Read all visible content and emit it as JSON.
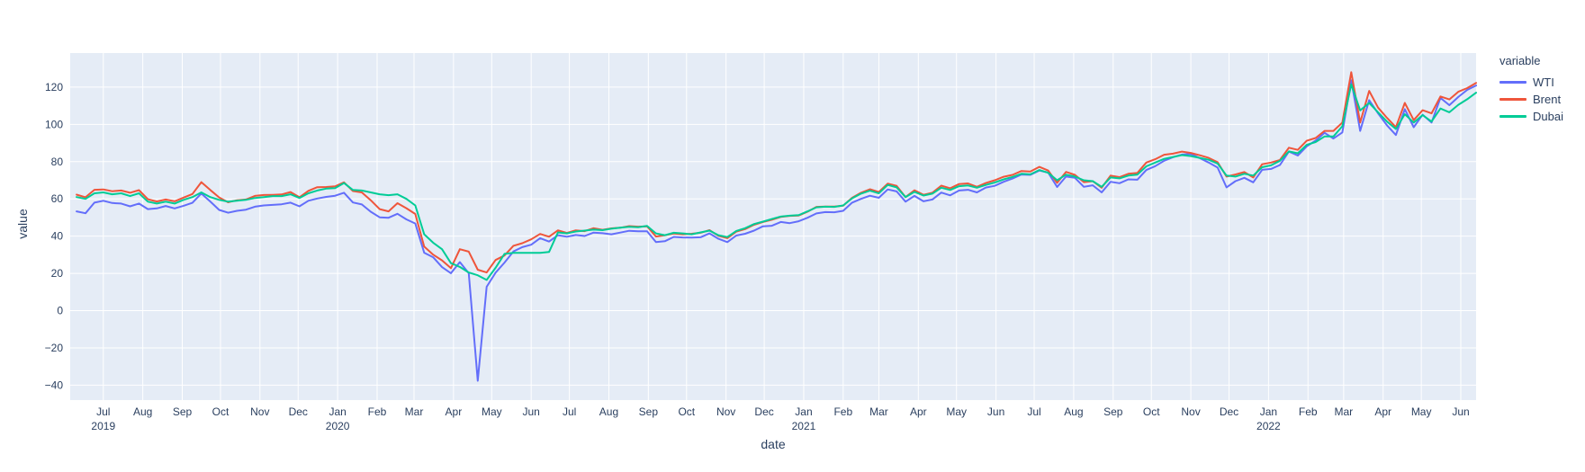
{
  "chart_data": {
    "type": "line",
    "title": "",
    "xlabel": "date",
    "ylabel": "value",
    "legend_title": "variable",
    "legend_position": "right-top-outside",
    "grid": true,
    "colors": {
      "plot_background": "#E5ECF6",
      "grid": "#FFFFFF",
      "text": "#2A3F5F"
    },
    "x_start_date": "2019-06-10",
    "x_interval_days": 7,
    "xlim_days": [
      -5,
      1099
    ],
    "ylim": [
      -48,
      138.3
    ],
    "yticks": [
      -40,
      -20,
      0,
      20,
      40,
      60,
      80,
      100,
      120
    ],
    "xticks": [
      {
        "d": 21,
        "m": "Jul",
        "y": "2019"
      },
      {
        "d": 52,
        "m": "Aug"
      },
      {
        "d": 83,
        "m": "Sep"
      },
      {
        "d": 113,
        "m": "Oct"
      },
      {
        "d": 144,
        "m": "Nov"
      },
      {
        "d": 174,
        "m": "Dec"
      },
      {
        "d": 205,
        "m": "Jan",
        "y": "2020"
      },
      {
        "d": 236,
        "m": "Feb"
      },
      {
        "d": 265,
        "m": "Mar"
      },
      {
        "d": 296,
        "m": "Apr"
      },
      {
        "d": 326,
        "m": "May"
      },
      {
        "d": 357,
        "m": "Jun"
      },
      {
        "d": 387,
        "m": "Jul"
      },
      {
        "d": 418,
        "m": "Aug"
      },
      {
        "d": 449,
        "m": "Sep"
      },
      {
        "d": 479,
        "m": "Oct"
      },
      {
        "d": 510,
        "m": "Nov"
      },
      {
        "d": 540,
        "m": "Dec"
      },
      {
        "d": 571,
        "m": "Jan",
        "y": "2021"
      },
      {
        "d": 602,
        "m": "Feb"
      },
      {
        "d": 630,
        "m": "Mar"
      },
      {
        "d": 661,
        "m": "Apr"
      },
      {
        "d": 691,
        "m": "May"
      },
      {
        "d": 722,
        "m": "Jun"
      },
      {
        "d": 752,
        "m": "Jul"
      },
      {
        "d": 783,
        "m": "Aug"
      },
      {
        "d": 814,
        "m": "Sep"
      },
      {
        "d": 844,
        "m": "Oct"
      },
      {
        "d": 875,
        "m": "Nov"
      },
      {
        "d": 905,
        "m": "Dec"
      },
      {
        "d": 936,
        "m": "Jan",
        "y": "2022"
      },
      {
        "d": 967,
        "m": "Feb"
      },
      {
        "d": 995,
        "m": "Mar"
      },
      {
        "d": 1026,
        "m": "Apr"
      },
      {
        "d": 1056,
        "m": "May"
      },
      {
        "d": 1087,
        "m": "Jun"
      }
    ],
    "series": [
      {
        "name": "WTI",
        "color": "#636EFA",
        "values": [
          53.3,
          52.3,
          58,
          59,
          57.8,
          57.5,
          56,
          57.5,
          54.5,
          54.9,
          56.2,
          54.9,
          56.3,
          57.9,
          62.9,
          58.6,
          54.1,
          52.6,
          53.6,
          54.2,
          55.8,
          56.5,
          56.8,
          57.1,
          58,
          56,
          59,
          60.2,
          61.1,
          61.7,
          63.3,
          58.1,
          57,
          53.1,
          50.1,
          49.9,
          52,
          49,
          46.8,
          31.1,
          28.7,
          23.4,
          20.1,
          26.1,
          20.1,
          -37.6,
          12.8,
          20.4,
          25.8,
          31.8,
          34.1,
          35.4,
          38.9,
          37.1,
          40.5,
          39.7,
          40.6,
          40.1,
          41.9,
          41.6,
          41,
          41.9,
          42.9,
          42.6,
          42.6,
          36.8,
          37.3,
          39.6,
          39.3,
          39.2,
          39.4,
          41.5,
          38.6,
          36.8,
          40.3,
          41.3,
          43,
          45.3,
          45.6,
          47.6,
          47,
          48,
          49.9,
          52.2,
          52.9,
          52.8,
          53.6,
          58,
          60,
          61.7,
          60.6,
          65.1,
          64,
          58.5,
          61.6,
          58.7,
          59.7,
          63.4,
          61.9,
          64.5,
          64.9,
          63.5,
          66.1,
          67,
          69.2,
          70.9,
          73.1,
          72.9,
          75.2,
          74.1,
          66.4,
          72,
          71.3,
          66.5,
          67.3,
          63.5,
          69.2,
          68.4,
          70.5,
          70.3,
          75.5,
          77.6,
          80.5,
          82.4,
          83.8,
          84.1,
          81.9,
          79.5,
          76.8,
          66.2,
          69.5,
          71.3,
          68.9,
          75.6,
          76.1,
          78.2,
          85.4,
          83.3,
          88.2,
          91.3,
          95.5,
          92.4,
          95.7,
          123.7,
          96.5,
          113,
          105.9,
          99.5,
          94.3,
          108.2,
          98.5,
          105.2,
          101,
          114.2,
          110.3,
          114.7,
          118.5,
          120.9
        ]
      },
      {
        "name": "Brent",
        "color": "#EF553B",
        "values": [
          62.3,
          60.9,
          64.9,
          65.1,
          64.1,
          64.5,
          63.3,
          64.7,
          59.8,
          58.6,
          59.7,
          58.7,
          60.7,
          62.6,
          69,
          64.8,
          60.8,
          58.2,
          59.3,
          59.7,
          61.6,
          62.1,
          62.2,
          62.4,
          63.7,
          60.9,
          64.3,
          66.3,
          66.4,
          66.7,
          68.9,
          64.2,
          63.5,
          59.3,
          54.5,
          53.3,
          57.7,
          55,
          51.9,
          34.4,
          30.1,
          27,
          22.8,
          33,
          31.7,
          22,
          20.5,
          27.2,
          29.6,
          34.8,
          36.2,
          38.3,
          41.2,
          39.7,
          43.1,
          41.7,
          43.1,
          42.7,
          44.3,
          43.4,
          44.2,
          44.5,
          45.4,
          45.1,
          45.3,
          39.8,
          40.5,
          41.4,
          41,
          41.3,
          41.8,
          43.2,
          40.2,
          38.9,
          42.4,
          43.8,
          46.1,
          47.6,
          48.8,
          50.3,
          50.9,
          51.1,
          53.1,
          55.7,
          55.9,
          55.9,
          56.4,
          60.6,
          63.3,
          65.2,
          63.7,
          68.2,
          67,
          61,
          64.6,
          62.2,
          63.3,
          67.1,
          65.7,
          68,
          68.3,
          66.5,
          68.5,
          70,
          71.9,
          72.9,
          75,
          74.7,
          77.2,
          75.2,
          68.6,
          74.5,
          72.9,
          69,
          69.5,
          66,
          72.5,
          71.7,
          73.5,
          73.9,
          79.5,
          81.3,
          83.7,
          84.3,
          85.4,
          84.7,
          83.4,
          82,
          79.7,
          72,
          73.1,
          74.4,
          71.5,
          78.6,
          79.5,
          80.9,
          87.5,
          86.3,
          91.2,
          92.7,
          96.5,
          96.5,
          101,
          128,
          101,
          118,
          109,
          103.5,
          98.5,
          111.5,
          102.3,
          107.6,
          105.9,
          115,
          113.4,
          117.5,
          119.5,
          122.3
        ]
      },
      {
        "name": "Dubai",
        "color": "#00CC96",
        "values": [
          61,
          60,
          63,
          63.5,
          62.5,
          63,
          61.5,
          63,
          58.5,
          57.5,
          58.5,
          57.5,
          59.5,
          61,
          63.5,
          61,
          59.5,
          58.5,
          59,
          59.5,
          60.5,
          61,
          61.5,
          61.5,
          62.5,
          60.5,
          63,
          64.5,
          65.5,
          65.8,
          68.5,
          64.8,
          64.5,
          63.5,
          62.5,
          62,
          62.5,
          60,
          56.5,
          41,
          36.5,
          33,
          25.5,
          23.5,
          20.5,
          19,
          16.5,
          23,
          30.5,
          31,
          31,
          31,
          31,
          31.5,
          42,
          41.5,
          42.5,
          43,
          43.5,
          43.2,
          44,
          44.5,
          45,
          44.8,
          45.5,
          41.5,
          40.5,
          41.8,
          41.5,
          41,
          42,
          43,
          40.5,
          39.5,
          42.8,
          44.3,
          46.5,
          47.8,
          49.2,
          50.5,
          51,
          51.3,
          53.3,
          55.5,
          55.8,
          55.7,
          56.5,
          60.3,
          62.8,
          64.4,
          63,
          67.5,
          66.2,
          61,
          63.8,
          61.8,
          62.8,
          66,
          64.8,
          66.8,
          67.2,
          66,
          67.5,
          68.8,
          70.5,
          71.8,
          73.5,
          73.2,
          75.5,
          74,
          70,
          73,
          72,
          70,
          69.5,
          66.5,
          71.5,
          71,
          72.5,
          73,
          77.5,
          79.5,
          81.5,
          82.5,
          83.5,
          83,
          82,
          81,
          79,
          72.5,
          72,
          73.5,
          72.5,
          77,
          78,
          80.5,
          85.5,
          84.5,
          89,
          90.5,
          93.5,
          93.5,
          99,
          121.5,
          107.5,
          111.5,
          106.5,
          101.5,
          97.5,
          105.5,
          101,
          105,
          101.5,
          108.5,
          106.5,
          110.5,
          113.5,
          117
        ]
      }
    ]
  }
}
